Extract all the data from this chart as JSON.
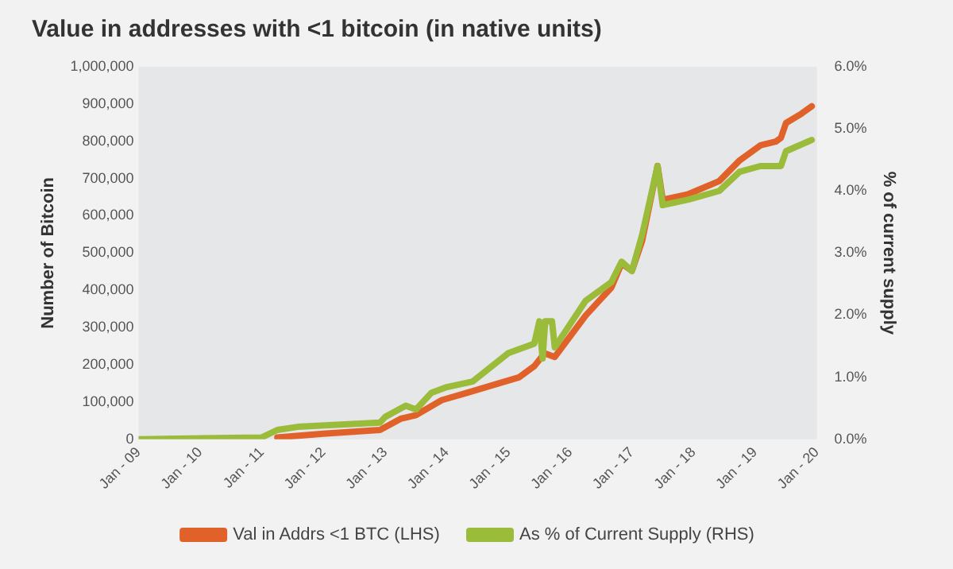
{
  "chart_data": {
    "type": "line",
    "title": "Value in addresses with <1 bitcoin (in native units)",
    "ylabel": "Number of Bitcoin",
    "y2label": "% of current supply",
    "xlim": [
      "2009-01",
      "2020-01"
    ],
    "xticks": [
      {
        "value": "2009-01",
        "label": "Jan - 09"
      },
      {
        "value": "2010-01",
        "label": "Jan - 10"
      },
      {
        "value": "2011-01",
        "label": "Jan - 11"
      },
      {
        "value": "2012-01",
        "label": "Jan - 12"
      },
      {
        "value": "2013-01",
        "label": "Jan - 13"
      },
      {
        "value": "2014-01",
        "label": "Jan - 14"
      },
      {
        "value": "2015-01",
        "label": "Jan - 15"
      },
      {
        "value": "2016-01",
        "label": "Jan - 16"
      },
      {
        "value": "2017-01",
        "label": "Jan - 17"
      },
      {
        "value": "2018-01",
        "label": "Jan - 18"
      },
      {
        "value": "2019-01",
        "label": "Jan - 19"
      },
      {
        "value": "2020-01",
        "label": "Jan - 20"
      }
    ],
    "ylim": [
      0,
      1000000
    ],
    "yticks": [
      {
        "value": 0,
        "label": "0"
      },
      {
        "value": 100000,
        "label": "100,000"
      },
      {
        "value": 200000,
        "label": "200,000"
      },
      {
        "value": 300000,
        "label": "300,000"
      },
      {
        "value": 400000,
        "label": "400,000"
      },
      {
        "value": 500000,
        "label": "500,000"
      },
      {
        "value": 600000,
        "label": "600,000"
      },
      {
        "value": 700000,
        "label": "700,000"
      },
      {
        "value": 800000,
        "label": "800,000"
      },
      {
        "value": 900000,
        "label": "900,000"
      },
      {
        "value": 1000000,
        "label": "1,000,000"
      }
    ],
    "y2lim": [
      0,
      6
    ],
    "y2ticks": [
      {
        "value": 0,
        "label": "0.0%"
      },
      {
        "value": 1,
        "label": "1.0%"
      },
      {
        "value": 2,
        "label": "2.0%"
      },
      {
        "value": 3,
        "label": "3.0%"
      },
      {
        "value": 4,
        "label": "4.0%"
      },
      {
        "value": 5,
        "label": "5.0%"
      },
      {
        "value": 6,
        "label": "6.0%"
      }
    ],
    "legend": "bottom",
    "marker": "none",
    "line_style": "solid",
    "series": [
      {
        "name": "Val in Addrs <1 BTC (LHS)",
        "color": "#e0622a",
        "x": [
          "2011-04",
          "2012-01",
          "2012-12",
          "2013-04",
          "2013-07",
          "2013-12",
          "2014-05",
          "2015-03",
          "2015-06",
          "2015-08",
          "2015-10",
          "2016-04",
          "2016-09",
          "2016-11",
          "2017-01",
          "2017-03",
          "2017-06",
          "2017-07",
          "2017-12",
          "2018-06",
          "2018-10",
          "2019-02",
          "2019-05",
          "2019-06",
          "2019-07",
          "2019-10",
          "2019-12"
        ],
        "values": [
          5000,
          15000,
          25000,
          55000,
          65000,
          105000,
          125000,
          166000,
          196000,
          231000,
          221000,
          332000,
          407000,
          472000,
          452000,
          533000,
          734000,
          643000,
          658000,
          693000,
          749000,
          789000,
          799000,
          809000,
          849000,
          874000,
          894000
        ]
      },
      {
        "name": "As % of Current Supply (RHS)",
        "color": "#9bbb3b",
        "axis": "y2",
        "x": [
          "2009-01",
          "2011-01",
          "2011-04",
          "2011-08",
          "2012-12",
          "2013-01",
          "2013-05",
          "2013-07",
          "2013-10",
          "2014-01",
          "2014-06",
          "2015-01",
          "2015-03",
          "2015-06",
          "2015-07-01",
          "2015-07-20",
          "2015-08-05",
          "2015-09-15",
          "2015-10-01",
          "2016-04",
          "2016-09",
          "2016-11",
          "2017-01",
          "2017-03",
          "2017-06",
          "2017-07",
          "2017-12",
          "2018-06",
          "2018-10",
          "2019-02",
          "2019-06",
          "2019-07",
          "2019-12"
        ],
        "values": [
          0,
          0.03,
          0.15,
          0.2,
          0.27,
          0.36,
          0.54,
          0.48,
          0.75,
          0.84,
          0.93,
          1.39,
          1.45,
          1.54,
          1.9,
          1.3,
          1.9,
          1.9,
          1.48,
          2.23,
          2.53,
          2.86,
          2.71,
          3.29,
          4.4,
          3.77,
          3.86,
          4.0,
          4.31,
          4.4,
          4.4,
          4.64,
          4.82
        ]
      }
    ]
  }
}
